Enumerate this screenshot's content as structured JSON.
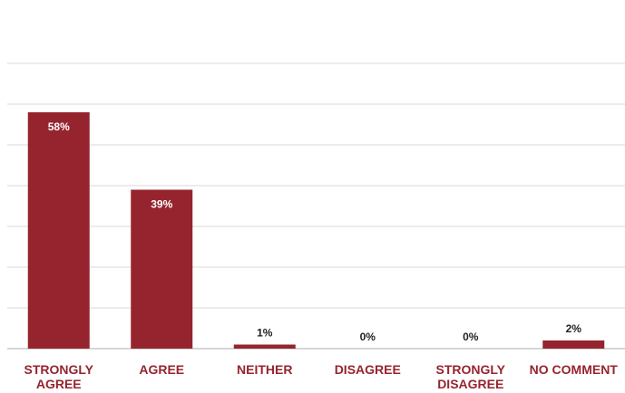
{
  "chart_data": {
    "type": "bar",
    "categories": [
      [
        "STRONGLY",
        "AGREE"
      ],
      [
        "AGREE"
      ],
      [
        "NEITHER"
      ],
      [
        "DISAGREE"
      ],
      [
        "STRONGLY",
        "DISAGREE"
      ],
      [
        "NO COMMENT"
      ]
    ],
    "values": [
      58,
      39,
      1,
      0,
      0,
      2
    ],
    "data_labels": [
      "58%",
      "39%",
      "1%",
      "0%",
      "0%",
      "2%"
    ],
    "ylim": [
      0,
      70
    ],
    "grid": true,
    "legend": "none",
    "title": "",
    "xlabel": "",
    "ylabel": ""
  },
  "colors": {
    "bar": "#96242e",
    "label_inside": "#ffffff",
    "label_outside": "#222222",
    "category_text": "#96242e"
  }
}
